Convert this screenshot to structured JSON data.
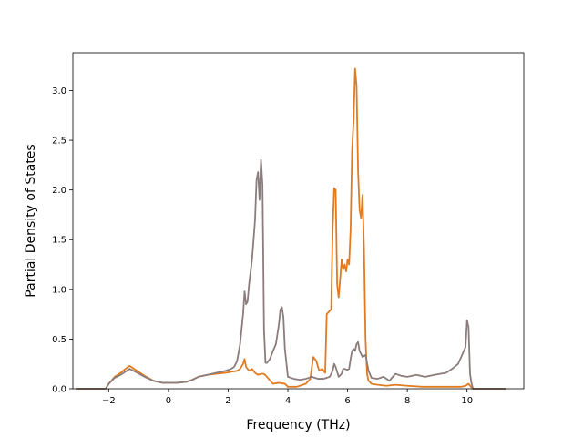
{
  "chart_data": {
    "type": "line",
    "title": "",
    "xlabel": "Frequency (THz)",
    "ylabel": "Partial Density of States",
    "xlim": [
      -3.2,
      11.9
    ],
    "ylim": [
      0,
      3.38
    ],
    "xticks": [
      -2,
      0,
      2,
      4,
      6,
      8,
      10
    ],
    "xtick_labels": [
      "−2",
      "0",
      "2",
      "4",
      "6",
      "8",
      "10"
    ],
    "yticks": [
      0.0,
      0.5,
      1.0,
      1.5,
      2.0,
      2.5,
      3.0
    ],
    "ytick_labels": [
      "0.0",
      "0.5",
      "1.0",
      "1.5",
      "2.0",
      "2.5",
      "3.0"
    ],
    "grid": false,
    "series": [
      {
        "color": "#e07b22",
        "x": [
          -3.1,
          -2.1,
          -2.0,
          -1.8,
          -1.6,
          -1.4,
          -1.3,
          -1.1,
          -0.8,
          -0.5,
          -0.2,
          0.0,
          0.3,
          0.6,
          0.8,
          1.0,
          1.3,
          1.6,
          1.9,
          2.1,
          2.3,
          2.4,
          2.5,
          2.55,
          2.6,
          2.7,
          2.8,
          2.9,
          3.0,
          3.1,
          3.2,
          3.3,
          3.5,
          3.7,
          3.9,
          4.0,
          4.3,
          4.6,
          4.75,
          4.85,
          4.95,
          5.05,
          5.15,
          5.25,
          5.3,
          5.45,
          5.5,
          5.55,
          5.6,
          5.65,
          5.7,
          5.75,
          5.8,
          5.85,
          5.9,
          5.95,
          6.0,
          6.05,
          6.1,
          6.15,
          6.2,
          6.25,
          6.3,
          6.35,
          6.4,
          6.45,
          6.5,
          6.55,
          6.6,
          6.65,
          6.7,
          6.8,
          7.0,
          7.3,
          7.6,
          8.0,
          8.5,
          9.0,
          9.5,
          9.8,
          9.95,
          10.05,
          10.1,
          10.2,
          11.3
        ],
        "y": [
          0.0,
          0.0,
          0.05,
          0.12,
          0.16,
          0.21,
          0.23,
          0.19,
          0.13,
          0.08,
          0.06,
          0.06,
          0.06,
          0.07,
          0.09,
          0.12,
          0.14,
          0.15,
          0.16,
          0.17,
          0.18,
          0.2,
          0.25,
          0.3,
          0.22,
          0.18,
          0.2,
          0.16,
          0.14,
          0.15,
          0.15,
          0.12,
          0.05,
          0.06,
          0.05,
          0.02,
          0.02,
          0.05,
          0.1,
          0.32,
          0.28,
          0.18,
          0.2,
          0.16,
          0.75,
          0.8,
          1.6,
          2.02,
          2.0,
          1.05,
          0.92,
          1.1,
          1.3,
          1.2,
          1.25,
          1.18,
          1.3,
          1.25,
          1.6,
          2.4,
          2.7,
          3.22,
          3.05,
          2.2,
          1.8,
          1.72,
          1.95,
          1.4,
          0.5,
          0.15,
          0.08,
          0.05,
          0.04,
          0.03,
          0.04,
          0.03,
          0.02,
          0.02,
          0.02,
          0.02,
          0.03,
          0.05,
          0.03,
          0.0,
          0.0
        ]
      },
      {
        "color": "#8b7d7b",
        "x": [
          -3.1,
          -2.1,
          -2.0,
          -1.8,
          -1.6,
          -1.4,
          -1.3,
          -1.1,
          -0.8,
          -0.5,
          -0.2,
          0.0,
          0.3,
          0.6,
          0.8,
          1.0,
          1.3,
          1.6,
          1.9,
          2.1,
          2.2,
          2.3,
          2.4,
          2.45,
          2.5,
          2.55,
          2.6,
          2.65,
          2.7,
          2.8,
          2.9,
          2.95,
          3.0,
          3.05,
          3.1,
          3.15,
          3.2,
          3.25,
          3.3,
          3.4,
          3.5,
          3.6,
          3.7,
          3.75,
          3.8,
          3.85,
          3.9,
          4.0,
          4.2,
          4.4,
          4.6,
          4.8,
          5.0,
          5.2,
          5.4,
          5.5,
          5.55,
          5.6,
          5.7,
          5.8,
          5.85,
          5.9,
          6.0,
          6.05,
          6.1,
          6.15,
          6.2,
          6.25,
          6.3,
          6.35,
          6.4,
          6.5,
          6.6,
          6.7,
          6.8,
          7.0,
          7.2,
          7.4,
          7.6,
          7.8,
          8.0,
          8.3,
          8.6,
          8.9,
          9.1,
          9.3,
          9.5,
          9.7,
          9.85,
          9.95,
          10.0,
          10.05,
          10.1,
          10.15,
          10.2,
          11.3
        ],
        "y": [
          0.0,
          0.0,
          0.05,
          0.11,
          0.14,
          0.18,
          0.2,
          0.17,
          0.12,
          0.08,
          0.06,
          0.06,
          0.06,
          0.07,
          0.09,
          0.12,
          0.14,
          0.16,
          0.18,
          0.2,
          0.22,
          0.28,
          0.45,
          0.6,
          0.75,
          0.98,
          0.85,
          0.88,
          1.05,
          1.3,
          1.7,
          2.1,
          2.18,
          1.9,
          2.3,
          2.05,
          0.6,
          0.26,
          0.26,
          0.3,
          0.38,
          0.45,
          0.65,
          0.8,
          0.82,
          0.72,
          0.4,
          0.12,
          0.1,
          0.09,
          0.1,
          0.12,
          0.1,
          0.1,
          0.12,
          0.18,
          0.25,
          0.22,
          0.12,
          0.15,
          0.2,
          0.2,
          0.19,
          0.2,
          0.3,
          0.38,
          0.4,
          0.38,
          0.45,
          0.47,
          0.38,
          0.32,
          0.34,
          0.18,
          0.11,
          0.1,
          0.12,
          0.08,
          0.15,
          0.13,
          0.12,
          0.14,
          0.12,
          0.14,
          0.15,
          0.16,
          0.2,
          0.25,
          0.35,
          0.42,
          0.69,
          0.62,
          0.15,
          0.05,
          0.0,
          0.0
        ]
      }
    ]
  }
}
